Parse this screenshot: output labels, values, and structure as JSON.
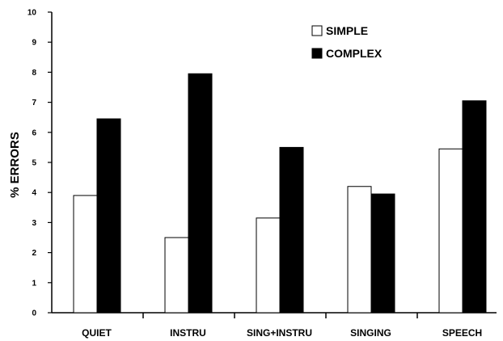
{
  "chart_data": {
    "type": "bar",
    "title": "",
    "xlabel": "",
    "ylabel": "% ERRORS",
    "ylim": [
      0,
      10
    ],
    "yticks": [
      0,
      1,
      2,
      3,
      4,
      5,
      6,
      7,
      8,
      9,
      10
    ],
    "grid": false,
    "legend_position": "top-right",
    "categories": [
      "QUIET",
      "INSTRU",
      "SING+INSTRU",
      "SINGING",
      "SPEECH"
    ],
    "series": [
      {
        "name": "SIMPLE",
        "color": "#ffffff",
        "values": [
          3.9,
          2.5,
          3.15,
          4.2,
          5.45
        ]
      },
      {
        "name": "COMPLEX",
        "color": "#000000",
        "values": [
          6.45,
          7.95,
          5.5,
          3.95,
          7.05
        ]
      }
    ]
  }
}
